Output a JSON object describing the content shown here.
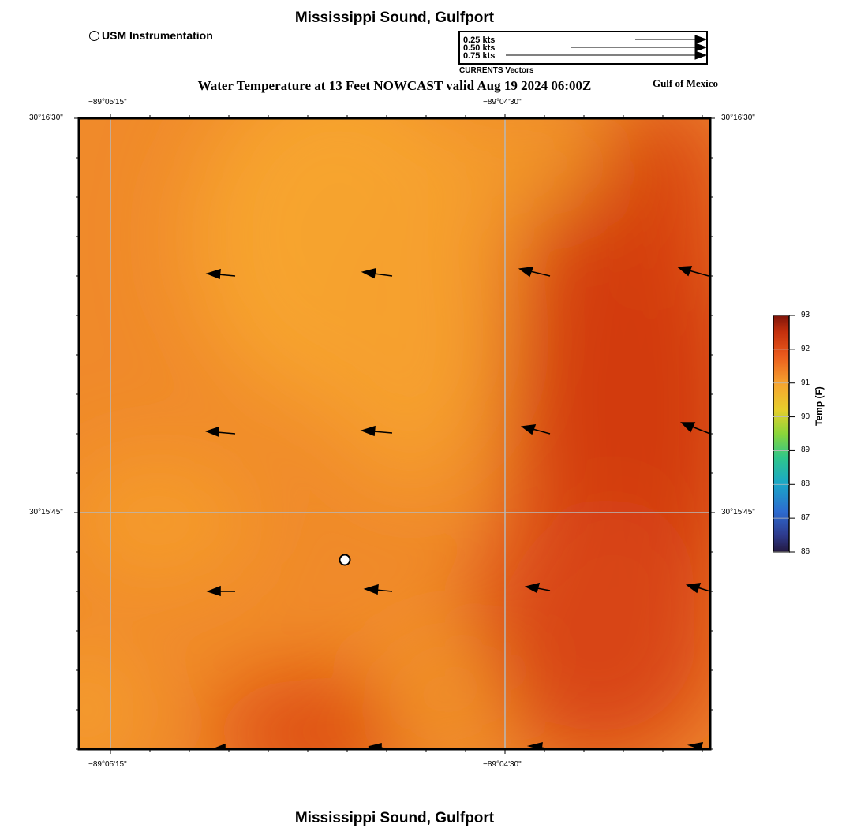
{
  "header": {
    "top_title": "Mississippi Sound, Gulfport",
    "main_title": "Water Temperature at 13 Feet NOWCAST valid Aug 19 2024 06:00Z",
    "region_label": "Gulf of Mexico"
  },
  "footer": {
    "bottom_title": "Mississippi Sound, Gulfport"
  },
  "legend": {
    "usm_label": "USM Instrumentation",
    "scale_labels": [
      "0.25 kts",
      "0.50 kts",
      "0.75 kts"
    ],
    "vector_caption": "CURRENTS Vectors"
  },
  "axes": {
    "lon_labels": [
      "−89°05'15\"",
      "−89°04'30\""
    ],
    "lat_labels": [
      "30°16'30\"",
      "30°15'45\""
    ]
  },
  "colorbar": {
    "label": "Temp (F)",
    "ticks": [
      "93",
      "92",
      "91",
      "90",
      "89",
      "88",
      "87",
      "86"
    ],
    "min": 86,
    "max": 93
  },
  "colors": {
    "water_base": "#f08a2a",
    "water_warm": "#d23a0e",
    "water_cool": "#f7a42e"
  },
  "icons": {
    "usm": "circle-marker-icon",
    "vector": "arrow-icon"
  }
}
